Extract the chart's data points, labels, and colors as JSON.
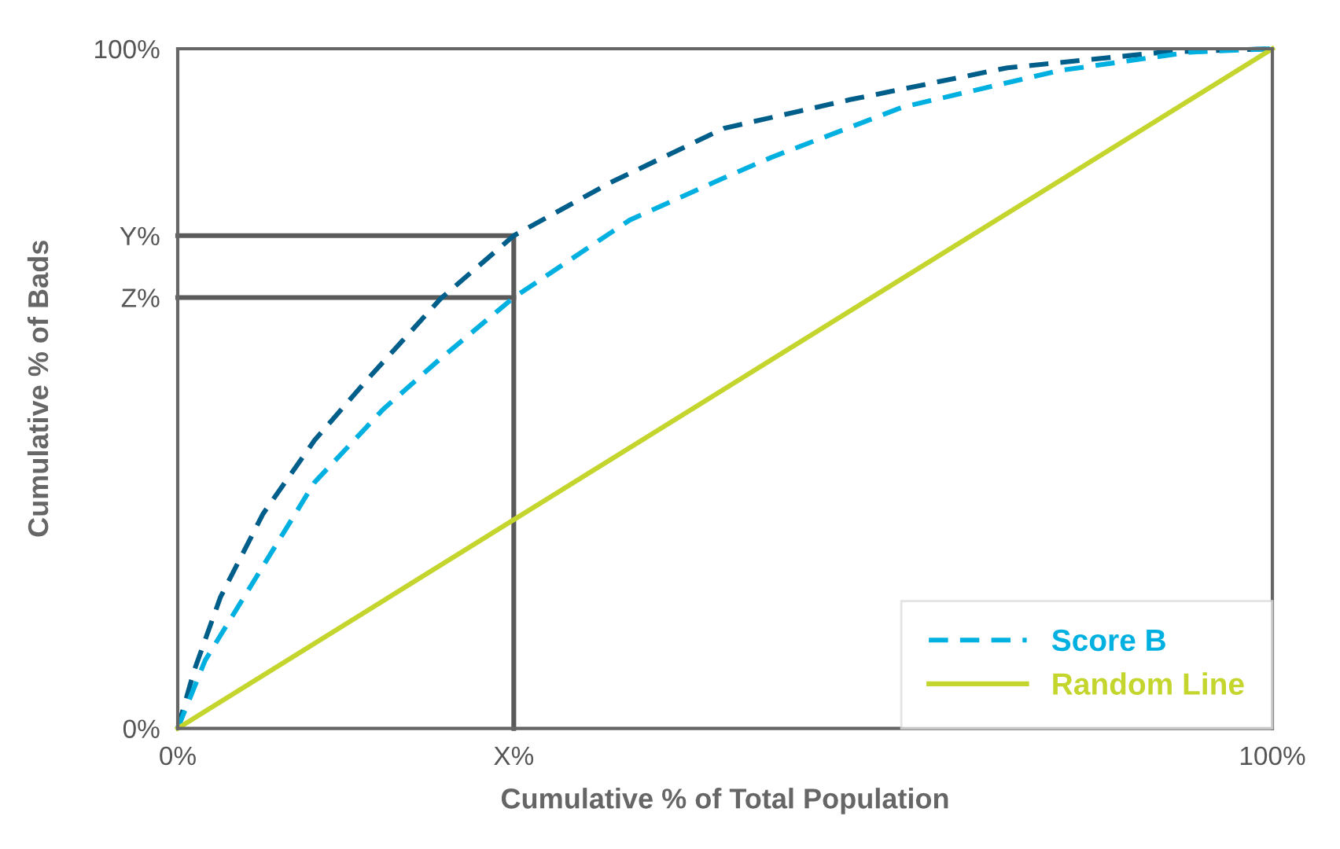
{
  "chart_data": {
    "type": "line",
    "xlabel": "Cumulative % of Total Population",
    "ylabel": "Cumulative % of Bads",
    "xlim": [
      0,
      100
    ],
    "ylim": [
      0,
      100
    ],
    "xticks": [
      {
        "value": 0,
        "label": "0%"
      },
      {
        "value": 30.7,
        "label": "X%"
      },
      {
        "value": 100,
        "label": "100%"
      }
    ],
    "yticks": [
      {
        "value": 0,
        "label": "0%"
      },
      {
        "value": 63.4,
        "label": "Z%"
      },
      {
        "value": 72.5,
        "label": "Y%"
      },
      {
        "value": 100,
        "label": "100%"
      }
    ],
    "grid": false,
    "legend": "bottom right",
    "series": [
      {
        "color": "#5a5a5a",
        "line_style": "solid",
        "x": [
          0,
          30.7,
          30.7
        ],
        "values": [
          72.5,
          72.5,
          0
        ]
      },
      {
        "color": "#5a5a5a",
        "line_style": "solid",
        "x": [
          0,
          30.7
        ],
        "values": [
          63.4,
          63.4
        ]
      },
      {
        "color": "#005e8a",
        "line_style": "dashed",
        "x": [
          0,
          1.5,
          3.9,
          7.8,
          12.5,
          17.3,
          24.0,
          30.7,
          39.4,
          49.9,
          61.4,
          75.8,
          90.1,
          100
        ],
        "values": [
          0,
          8.5,
          19.3,
          31.6,
          42.4,
          51.3,
          63.2,
          72.5,
          80.2,
          88.3,
          92.5,
          97.2,
          99.5,
          100
        ]
      },
      {
        "name": "Score B",
        "color": "#00b0e0",
        "line_style": "dashed",
        "x": [
          0,
          2.5,
          7.8,
          12.5,
          18.8,
          24.0,
          30.7,
          41.3,
          49.9,
          54.2,
          66.2,
          80.6,
          92.5,
          100
        ],
        "values": [
          0,
          10.0,
          23.9,
          36.2,
          47.0,
          54.4,
          63.4,
          74.8,
          81.0,
          84.0,
          91.4,
          96.8,
          99.5,
          100
        ]
      },
      {
        "name": "Random Line",
        "color": "#c4d62e",
        "line_style": "solid",
        "x": [
          0,
          100
        ],
        "values": [
          0,
          100
        ]
      }
    ]
  }
}
